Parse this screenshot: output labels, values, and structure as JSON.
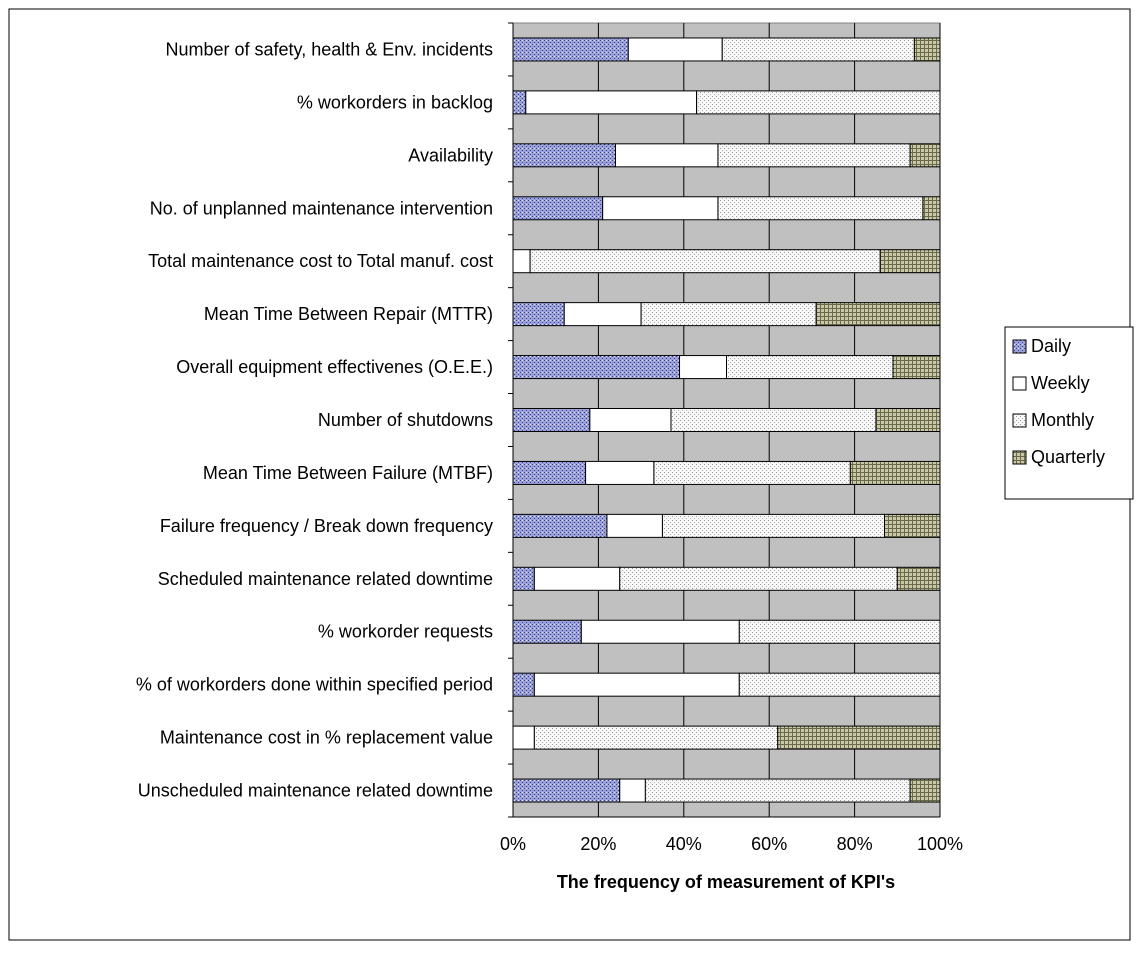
{
  "chart_data": {
    "type": "bar",
    "orientation": "horizontal",
    "stacked": "percent",
    "categories": [
      "Number of safety, health & Env. incidents",
      "% workorders in backlog",
      "Availability",
      "No. of unplanned maintenance intervention",
      "Total maintenance cost to Total manuf. cost",
      "Mean Time Between Repair (MTTR)",
      "Overall equipment effectivenes (O.E.E.)",
      "Number of shutdowns",
      "Mean Time Between Failure (MTBF)",
      "Failure frequency / Break down frequency",
      "Scheduled maintenance related downtime",
      "% workorder requests",
      "% of workorders done within specified period",
      "Maintenance cost in % replacement value",
      "Unscheduled maintenance related downtime"
    ],
    "series": [
      {
        "name": "Daily",
        "values": [
          27,
          3,
          24,
          21,
          0,
          12,
          39,
          18,
          17,
          22,
          5,
          16,
          5,
          0,
          25
        ]
      },
      {
        "name": "Weekly",
        "values": [
          22,
          40,
          24,
          27,
          4,
          18,
          11,
          19,
          16,
          13,
          20,
          37,
          48,
          5,
          6
        ]
      },
      {
        "name": "Monthly",
        "values": [
          45,
          57,
          45,
          48,
          82,
          41,
          39,
          48,
          46,
          52,
          65,
          47,
          47,
          57,
          62
        ]
      },
      {
        "name": "Quarterly",
        "values": [
          6,
          0,
          7,
          4,
          14,
          29,
          11,
          15,
          21,
          13,
          10,
          0,
          0,
          38,
          7
        ]
      }
    ],
    "x_ticks": [
      "0%",
      "20%",
      "40%",
      "60%",
      "80%",
      "100%"
    ],
    "xlim": [
      0,
      100
    ],
    "xlabel": "The frequency of measurement of KPI's",
    "title": "",
    "grid": true,
    "legend_position": "right",
    "colors": {
      "plot_background": "#c0c0c0",
      "Daily": "#9aa0d8",
      "Weekly": "#ffffff",
      "Monthly": "#f2f2f2",
      "Quarterly": "#bcbc9a"
    }
  }
}
